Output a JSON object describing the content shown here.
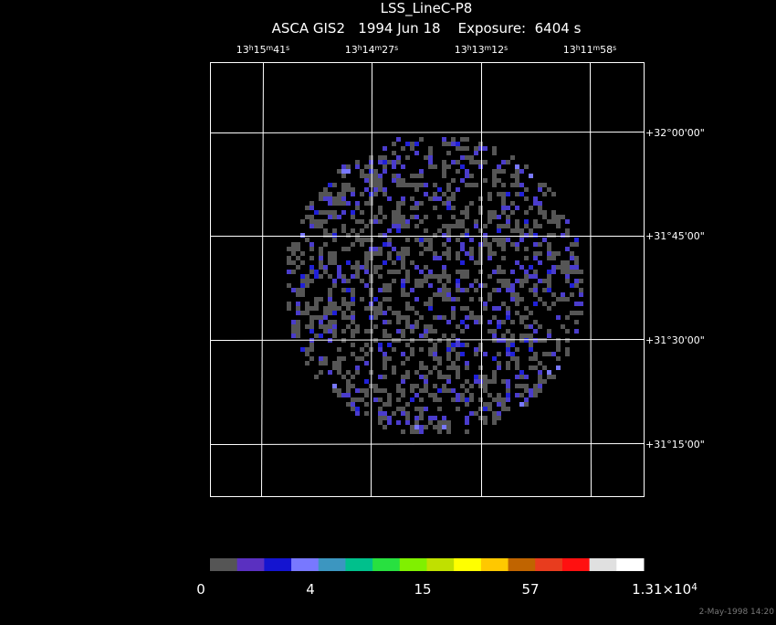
{
  "header": {
    "title": "LSS_LineC-P8",
    "subtitle": "ASCA GIS2   1994 Jun 18    Exposure:  6404 s"
  },
  "ra_labels": [
    [
      "13",
      "h",
      "15",
      "m",
      "41",
      "s"
    ],
    [
      "13",
      "h",
      "14",
      "m",
      "27",
      "s"
    ],
    [
      "13",
      "h",
      "13",
      "m",
      "12",
      "s"
    ],
    [
      "13",
      "h",
      "11",
      "m",
      "58",
      "s"
    ]
  ],
  "dec_labels": [
    "+32°00'00\"",
    "+31°45'00\"",
    "+31°30'00\"",
    "+31°15'00\""
  ],
  "colorbar": {
    "colors": [
      "#555555",
      "#5a30c0",
      "#1414d0",
      "#7878ff",
      "#3c96c0",
      "#00c08c",
      "#28e040",
      "#80f000",
      "#c0e000",
      "#ffff00",
      "#ffc800",
      "#c06400",
      "#e83c1e",
      "#ff1010",
      "#e0e0e0",
      "#ffffff"
    ],
    "labels": [
      [
        "0"
      ],
      [
        "4"
      ],
      [
        "15"
      ],
      [
        "57"
      ],
      [
        "1.31×10",
        "4"
      ]
    ]
  },
  "timestamp": "2-May-1998 14:20"
}
